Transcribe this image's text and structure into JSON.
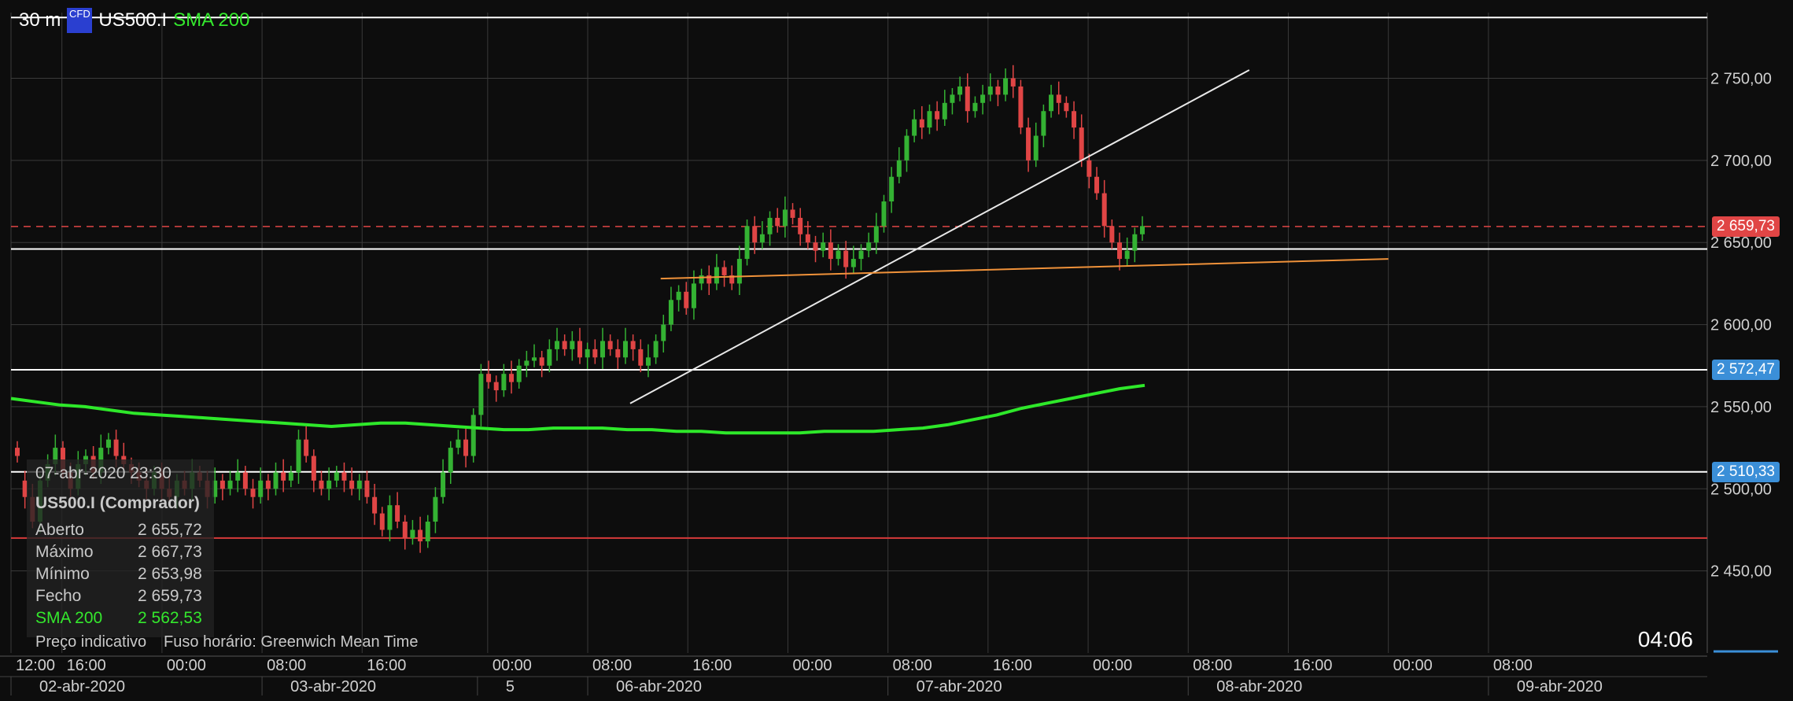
{
  "header": {
    "timeframe": "30 m",
    "badge": "CFD",
    "symbol": "US500.I",
    "indicator": "SMA 200"
  },
  "colors": {
    "background": "#0d0d0d",
    "grid": "#3a3a3a",
    "up_candle": "#34b233",
    "down_candle": "#e04545",
    "sma": "#2ee82a",
    "trend_white": "#e8e8e8",
    "trend_orange": "#f0923a",
    "current_price_line": "#e04545",
    "level_white": "#ffffff",
    "level_red": "#d63a3a",
    "price_badge_red": "#e04545",
    "price_badge_blue": "#3b8fd8"
  },
  "info_box": {
    "datetime": "07-abr-2020 23:30",
    "instrument": "US500.I (Comprador)",
    "rows": [
      {
        "label": "Aberto",
        "value": "2 655,72"
      },
      {
        "label": "Máximo",
        "value": "2 667,73"
      },
      {
        "label": "Mínimo",
        "value": "2 653,98"
      },
      {
        "label": "Fecho",
        "value": "2 659,73"
      }
    ],
    "sma_label": "SMA 200",
    "sma_value": "2 562,53"
  },
  "footer": {
    "price_note": "Preço indicativo",
    "timezone_note": "Fuso horário: Greenwich Mean Time",
    "clock": "04:06"
  },
  "price_labels": [
    {
      "text": "2 659,73",
      "price": 2659.73,
      "color": "#e04545"
    },
    {
      "text": "2 572,47",
      "price": 2572.47,
      "color": "#3b8fd8"
    },
    {
      "text": "2 510,33",
      "price": 2510.33,
      "color": "#3b8fd8"
    }
  ],
  "chart_data": {
    "type": "candlestick",
    "interval": "30 m",
    "ylim": [
      2400,
      2790
    ],
    "y_ticks": [
      {
        "value": 2450,
        "label": "2 450,00"
      },
      {
        "value": 2500,
        "label": "2 500,00"
      },
      {
        "value": 2550,
        "label": "2 550,00"
      },
      {
        "value": 2600,
        "label": "2 600,00"
      },
      {
        "value": 2650,
        "label": "2 650,00"
      },
      {
        "value": 2700,
        "label": "2 700,00"
      },
      {
        "value": 2750,
        "label": "2 750,00"
      }
    ],
    "x_ticks": [
      {
        "pos": 0.0,
        "label": "12:00"
      },
      {
        "pos": 0.03,
        "label": "16:00"
      },
      {
        "pos": 0.089,
        "label": "00:00"
      },
      {
        "pos": 0.148,
        "label": "08:00"
      },
      {
        "pos": 0.207,
        "label": "16:00"
      },
      {
        "pos": 0.281,
        "label": "00:00"
      },
      {
        "pos": 0.34,
        "label": "08:00"
      },
      {
        "pos": 0.399,
        "label": "16:00"
      },
      {
        "pos": 0.458,
        "label": "00:00"
      },
      {
        "pos": 0.517,
        "label": "08:00"
      },
      {
        "pos": 0.576,
        "label": "16:00"
      },
      {
        "pos": 0.635,
        "label": "00:00"
      },
      {
        "pos": 0.694,
        "label": "08:00"
      },
      {
        "pos": 0.753,
        "label": "16:00"
      },
      {
        "pos": 0.812,
        "label": "00:00"
      },
      {
        "pos": 0.871,
        "label": "08:00"
      }
    ],
    "date_labels": [
      {
        "pos": 0.0,
        "label": "02-abr-2020"
      },
      {
        "pos": 0.148,
        "label": "03-abr-2020"
      },
      {
        "pos": 0.275,
        "label": "5"
      },
      {
        "pos": 0.34,
        "label": "06-abr-2020"
      },
      {
        "pos": 0.517,
        "label": "07-abr-2020"
      },
      {
        "pos": 0.694,
        "label": "08-abr-2020"
      },
      {
        "pos": 0.871,
        "label": "09-abr-2020"
      }
    ],
    "closes": [
      2520,
      2495,
      2480,
      2505,
      2515,
      2525,
      2510,
      2500,
      2515,
      2520,
      2510,
      2525,
      2530,
      2520,
      2515,
      2510,
      2505,
      2500,
      2510,
      2500,
      2495,
      2505,
      2500,
      2510,
      2505,
      2495,
      2505,
      2500,
      2505,
      2510,
      2500,
      2495,
      2505,
      2500,
      2510,
      2505,
      2510,
      2530,
      2520,
      2505,
      2500,
      2505,
      2510,
      2505,
      2500,
      2505,
      2495,
      2485,
      2475,
      2490,
      2480,
      2470,
      2475,
      2468,
      2480,
      2495,
      2510,
      2525,
      2530,
      2520,
      2545,
      2570,
      2565,
      2560,
      2570,
      2565,
      2575,
      2578,
      2580,
      2575,
      2585,
      2590,
      2585,
      2590,
      2580,
      2585,
      2580,
      2590,
      2585,
      2580,
      2590,
      2585,
      2575,
      2580,
      2590,
      2600,
      2615,
      2620,
      2610,
      2625,
      2630,
      2625,
      2635,
      2630,
      2625,
      2640,
      2660,
      2650,
      2655,
      2665,
      2660,
      2670,
      2665,
      2655,
      2650,
      2645,
      2650,
      2640,
      2645,
      2635,
      2640,
      2645,
      2650,
      2660,
      2675,
      2690,
      2700,
      2715,
      2725,
      2720,
      2730,
      2725,
      2735,
      2740,
      2745,
      2730,
      2735,
      2740,
      2745,
      2740,
      2750,
      2745,
      2720,
      2700,
      2715,
      2730,
      2740,
      2735,
      2730,
      2720,
      2700,
      2690,
      2680,
      2660,
      2650,
      2640,
      2645,
      2655,
      2660
    ],
    "opens": [
      2525,
      2505,
      2495,
      2480,
      2505,
      2515,
      2525,
      2510,
      2500,
      2515,
      2520,
      2510,
      2525,
      2530,
      2520,
      2515,
      2510,
      2505,
      2500,
      2510,
      2500,
      2495,
      2505,
      2500,
      2510,
      2505,
      2495,
      2505,
      2500,
      2505,
      2510,
      2500,
      2495,
      2505,
      2500,
      2510,
      2505,
      2510,
      2530,
      2520,
      2505,
      2500,
      2505,
      2510,
      2505,
      2500,
      2505,
      2495,
      2485,
      2475,
      2490,
      2480,
      2470,
      2475,
      2468,
      2480,
      2495,
      2510,
      2525,
      2530,
      2520,
      2545,
      2570,
      2565,
      2560,
      2570,
      2565,
      2575,
      2578,
      2580,
      2575,
      2585,
      2590,
      2585,
      2590,
      2580,
      2585,
      2580,
      2590,
      2585,
      2580,
      2590,
      2585,
      2575,
      2580,
      2590,
      2600,
      2615,
      2620,
      2610,
      2625,
      2630,
      2625,
      2635,
      2630,
      2625,
      2640,
      2660,
      2650,
      2655,
      2665,
      2660,
      2670,
      2665,
      2655,
      2650,
      2645,
      2650,
      2640,
      2645,
      2635,
      2640,
      2645,
      2650,
      2660,
      2675,
      2690,
      2700,
      2715,
      2725,
      2720,
      2730,
      2725,
      2735,
      2740,
      2745,
      2730,
      2735,
      2740,
      2745,
      2740,
      2750,
      2745,
      2720,
      2700,
      2715,
      2730,
      2740,
      2735,
      2730,
      2720,
      2700,
      2690,
      2680,
      2660,
      2650,
      2640,
      2645,
      2655
    ],
    "sma_200": [
      2555,
      2553,
      2551,
      2550,
      2548,
      2546,
      2545,
      2544,
      2543,
      2542,
      2541,
      2540,
      2539,
      2538,
      2539,
      2540,
      2540,
      2539,
      2538,
      2537,
      2536,
      2536,
      2537,
      2537,
      2537,
      2536,
      2536,
      2535,
      2535,
      2534,
      2534,
      2534,
      2534,
      2535,
      2535,
      2535,
      2536,
      2537,
      2539,
      2542,
      2545,
      2549,
      2552,
      2555,
      2558,
      2561,
      2563
    ],
    "levels": [
      {
        "price": 2787,
        "color": "white"
      },
      {
        "price": 2646,
        "color": "white"
      },
      {
        "price": 2572.47,
        "color": "white"
      },
      {
        "price": 2510.33,
        "color": "white"
      },
      {
        "price": 2470,
        "color": "red"
      },
      {
        "price": 2659.73,
        "color": "red",
        "style": "dashed"
      }
    ],
    "trend_lines": [
      {
        "color": "white",
        "x1": 0.365,
        "y1": 2552,
        "x2": 0.73,
        "y2": 2755
      },
      {
        "color": "orange",
        "x1": 0.383,
        "y1": 2628,
        "x2": 0.812,
        "y2": 2640
      }
    ]
  }
}
